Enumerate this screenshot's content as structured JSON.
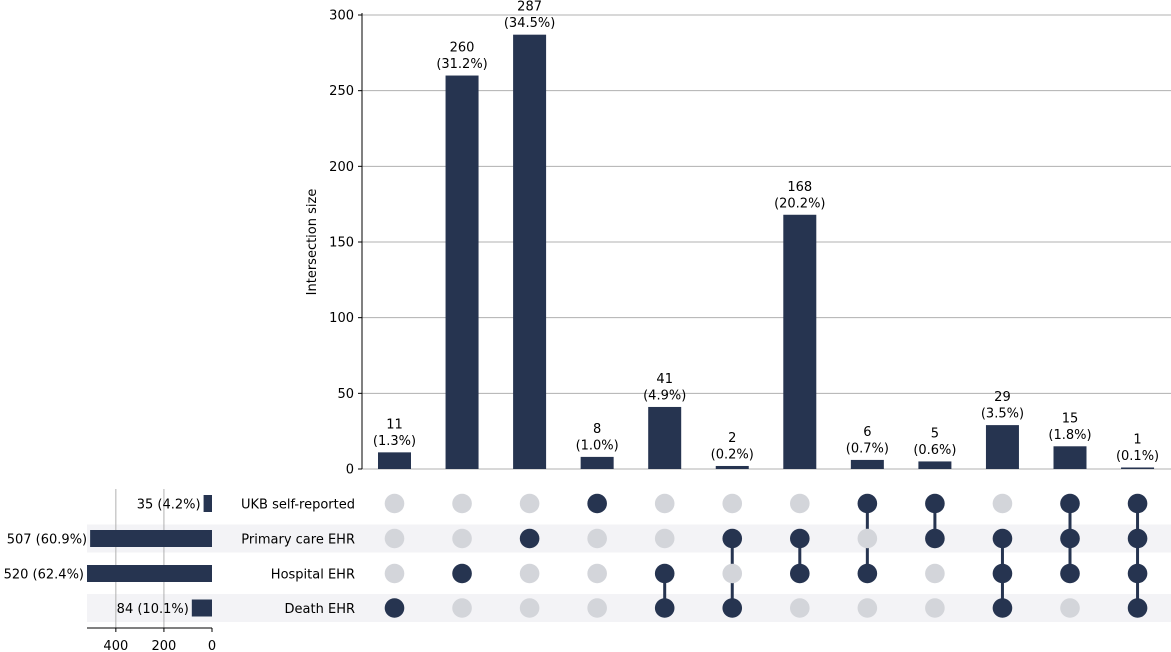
{
  "chart_data": {
    "type": "bar",
    "subtype": "upset",
    "colors": {
      "bar": "#263450",
      "dot_inactive": "#d3d5da",
      "grid": "#b0b0b0",
      "row_stripe": "#f3f3f6"
    },
    "intersections": {
      "ylabel": "Intersection size",
      "ylim": [
        0,
        300
      ],
      "yticks": [
        "0",
        "50",
        "100",
        "150",
        "200",
        "250",
        "300"
      ],
      "grid": true,
      "values": [
        11,
        260,
        287,
        8,
        41,
        2,
        168,
        6,
        5,
        29,
        15,
        1
      ],
      "counts": [
        "11",
        "260",
        "287",
        "8",
        "41",
        "2",
        "168",
        "6",
        "5",
        "29",
        "15",
        "1"
      ],
      "percents": [
        "(1.3%)",
        "(31.2%)",
        "(34.5%)",
        "(1.0%)",
        "(4.9%)",
        "(0.2%)",
        "(20.2%)",
        "(0.7%)",
        "(0.6%)",
        "(3.5%)",
        "(1.8%)",
        "(0.1%)"
      ],
      "membership": [
        [
          0,
          0,
          0,
          1
        ],
        [
          0,
          0,
          1,
          0
        ],
        [
          0,
          1,
          0,
          0
        ],
        [
          1,
          0,
          0,
          0
        ],
        [
          0,
          0,
          1,
          1
        ],
        [
          0,
          1,
          0,
          1
        ],
        [
          0,
          1,
          1,
          0
        ],
        [
          1,
          0,
          1,
          0
        ],
        [
          1,
          1,
          0,
          0
        ],
        [
          0,
          1,
          1,
          1
        ],
        [
          1,
          1,
          1,
          0
        ],
        [
          1,
          1,
          1,
          1
        ]
      ]
    },
    "sets": {
      "names": [
        "UKB self-reported",
        "Primary care EHR",
        "Hospital EHR",
        "Death EHR"
      ],
      "values": [
        35,
        507,
        520,
        84
      ],
      "labels": [
        "35 (4.2%)",
        "507 (60.9%)",
        "520 (62.4%)",
        "84 (10.1%)"
      ],
      "xlim": [
        0,
        520
      ],
      "xticks": [
        "400",
        "200",
        "0"
      ],
      "grid": true
    }
  }
}
